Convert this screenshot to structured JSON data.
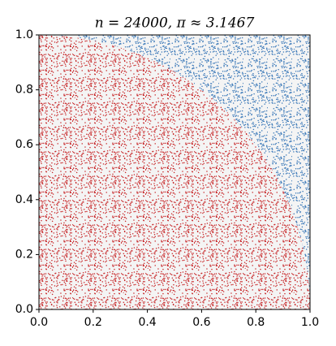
{
  "chart_data": {
    "type": "scatter",
    "title": "n = 24000, π ≈ 3.1467",
    "xlim": [
      0,
      1
    ],
    "ylim": [
      0,
      1
    ],
    "xticks": [
      {
        "value": 0,
        "label": "0.0"
      },
      {
        "value": 0.2,
        "label": "0.2"
      },
      {
        "value": 0.4,
        "label": "0.4"
      },
      {
        "value": 0.6,
        "label": "0.6"
      },
      {
        "value": 0.8,
        "label": "0.8"
      },
      {
        "value": 1,
        "label": "1.0"
      }
    ],
    "yticks": [
      {
        "value": 0,
        "label": "0.0"
      },
      {
        "value": 0.2,
        "label": "0.2"
      },
      {
        "value": 0.4,
        "label": "0.4"
      },
      {
        "value": 0.6,
        "label": "0.6"
      },
      {
        "value": 0.8,
        "label": "0.8"
      },
      {
        "value": 1,
        "label": "1.0"
      }
    ],
    "inside_color": "#c8282a",
    "outside_color": "#3a78b8"
  }
}
